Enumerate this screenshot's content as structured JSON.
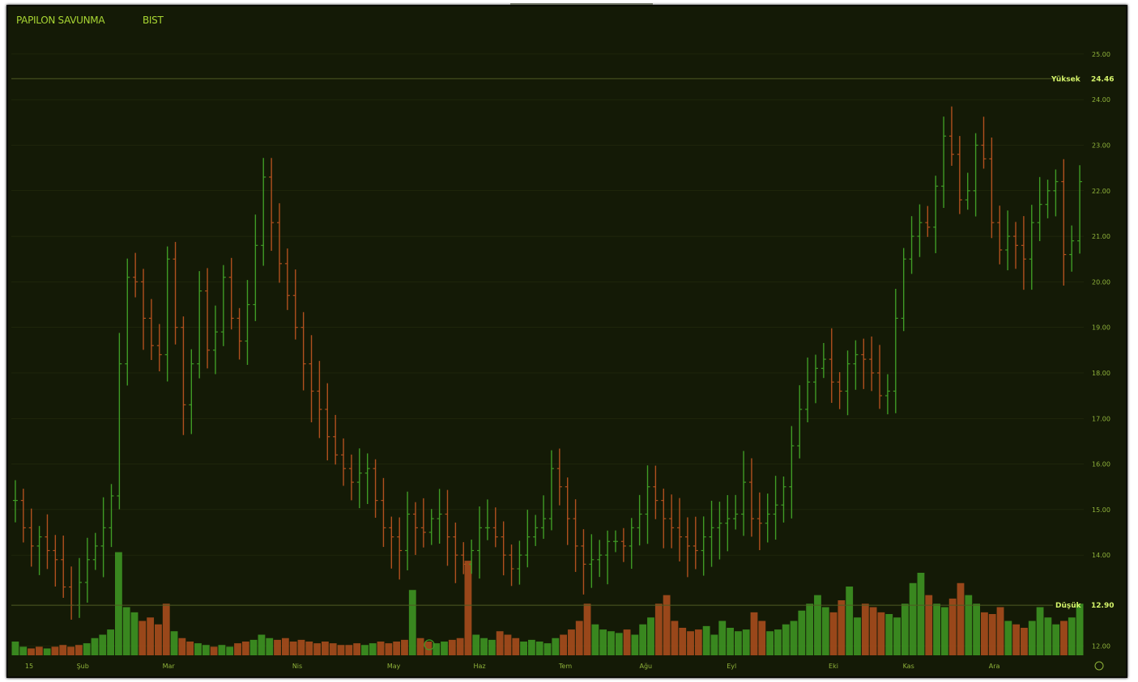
{
  "header": {
    "symbol": "PAPILON SAVUNMA",
    "exchange": "BIST"
  },
  "annotations": {
    "high": {
      "label": "Yüksek",
      "value": "24.46"
    },
    "low": {
      "label": "Düşük",
      "value": "12.90"
    }
  },
  "colors": {
    "up": "#3f9b25",
    "down": "#b0501e",
    "grid": "#2a3210",
    "text": "#8fb23a"
  },
  "chart_data": {
    "type": "ohlc-bar-with-volume",
    "price_axis": {
      "range": [
        11.8,
        25.3
      ],
      "ticks": [
        "25.00",
        "24.00",
        "23.00",
        "22.00",
        "21.00",
        "20.00",
        "19.00",
        "18.00",
        "17.00",
        "16.00",
        "15.00",
        "14.00",
        "12.00"
      ]
    },
    "months": [
      "15",
      "Şub",
      "Mar",
      "Nis",
      "May",
      "Haz",
      "Tem",
      "Ağu",
      "Eyl",
      "Eki",
      "Kas",
      "Ara"
    ],
    "month_positions": [
      0.0,
      0.05,
      0.13,
      0.25,
      0.34,
      0.42,
      0.5,
      0.575,
      0.655,
      0.75,
      0.82,
      0.9
    ],
    "close_series": [
      15.2,
      14.6,
      14.2,
      14.4,
      14.1,
      13.9,
      13.3,
      12.9,
      13.4,
      13.9,
      14.2,
      14.6,
      15.3,
      18.2,
      20.1,
      20.0,
      19.2,
      18.6,
      18.4,
      20.5,
      19.0,
      17.3,
      18.2,
      19.8,
      18.5,
      18.9,
      20.1,
      19.2,
      18.7,
      19.5,
      20.8,
      22.3,
      21.3,
      20.4,
      19.7,
      19.0,
      18.2,
      17.6,
      17.2,
      16.6,
      16.2,
      15.9,
      15.6,
      15.8,
      15.9,
      15.2,
      14.6,
      14.4,
      14.1,
      14.9,
      14.6,
      14.5,
      14.8,
      14.9,
      14.4,
      14.0,
      13.8,
      14.1,
      14.6,
      14.6,
      14.4,
      14.0,
      13.7,
      14.0,
      14.4,
      14.6,
      14.8,
      15.9,
      15.5,
      14.8,
      14.2,
      13.8,
      13.9,
      14.0,
      14.3,
      14.3,
      14.2,
      14.6,
      14.9,
      15.5,
      15.2,
      14.8,
      14.6,
      14.4,
      14.2,
      14.1,
      14.4,
      14.6,
      14.7,
      14.8,
      14.9,
      15.6,
      14.8,
      14.7,
      14.9,
      15.1,
      15.5,
      16.4,
      17.2,
      17.8,
      18.1,
      18.3,
      17.8,
      17.6,
      18.2,
      18.4,
      18.3,
      18.0,
      17.5,
      17.6,
      19.2,
      20.5,
      21.0,
      21.3,
      21.2,
      22.1,
      23.2,
      22.8,
      21.8,
      22.0,
      23.0,
      22.7,
      21.3,
      20.7,
      21.0,
      20.8,
      20.5,
      21.3,
      21.7,
      22.0,
      22.2,
      20.6,
      20.9,
      22.2
    ],
    "volume_series": [
      0.08,
      0.05,
      0.04,
      0.05,
      0.04,
      0.05,
      0.06,
      0.05,
      0.06,
      0.07,
      0.1,
      0.12,
      0.15,
      0.6,
      0.28,
      0.25,
      0.2,
      0.22,
      0.18,
      0.3,
      0.14,
      0.1,
      0.08,
      0.07,
      0.06,
      0.05,
      0.06,
      0.05,
      0.07,
      0.08,
      0.09,
      0.12,
      0.1,
      0.09,
      0.1,
      0.08,
      0.09,
      0.08,
      0.07,
      0.08,
      0.07,
      0.06,
      0.06,
      0.07,
      0.06,
      0.07,
      0.08,
      0.07,
      0.08,
      0.09,
      0.38,
      0.1,
      0.08,
      0.07,
      0.08,
      0.09,
      0.1,
      0.55,
      0.12,
      0.1,
      0.09,
      0.14,
      0.12,
      0.1,
      0.08,
      0.09,
      0.08,
      0.07,
      0.1,
      0.12,
      0.15,
      0.2,
      0.3,
      0.18,
      0.15,
      0.14,
      0.13,
      0.15,
      0.12,
      0.18,
      0.22,
      0.3,
      0.35,
      0.2,
      0.16,
      0.14,
      0.15,
      0.17,
      0.12,
      0.2,
      0.16,
      0.14,
      0.15,
      0.25,
      0.2,
      0.14,
      0.15,
      0.18,
      0.2,
      0.26,
      0.3,
      0.35,
      0.28,
      0.25,
      0.32,
      0.4,
      0.22,
      0.3,
      0.28,
      0.25,
      0.24,
      0.22,
      0.3,
      0.42,
      0.48,
      0.35,
      0.3,
      0.28,
      0.33,
      0.42,
      0.35,
      0.3,
      0.25,
      0.24,
      0.28,
      0.2,
      0.18,
      0.16,
      0.2,
      0.28,
      0.22,
      0.18,
      0.2,
      0.22,
      0.3
    ]
  }
}
